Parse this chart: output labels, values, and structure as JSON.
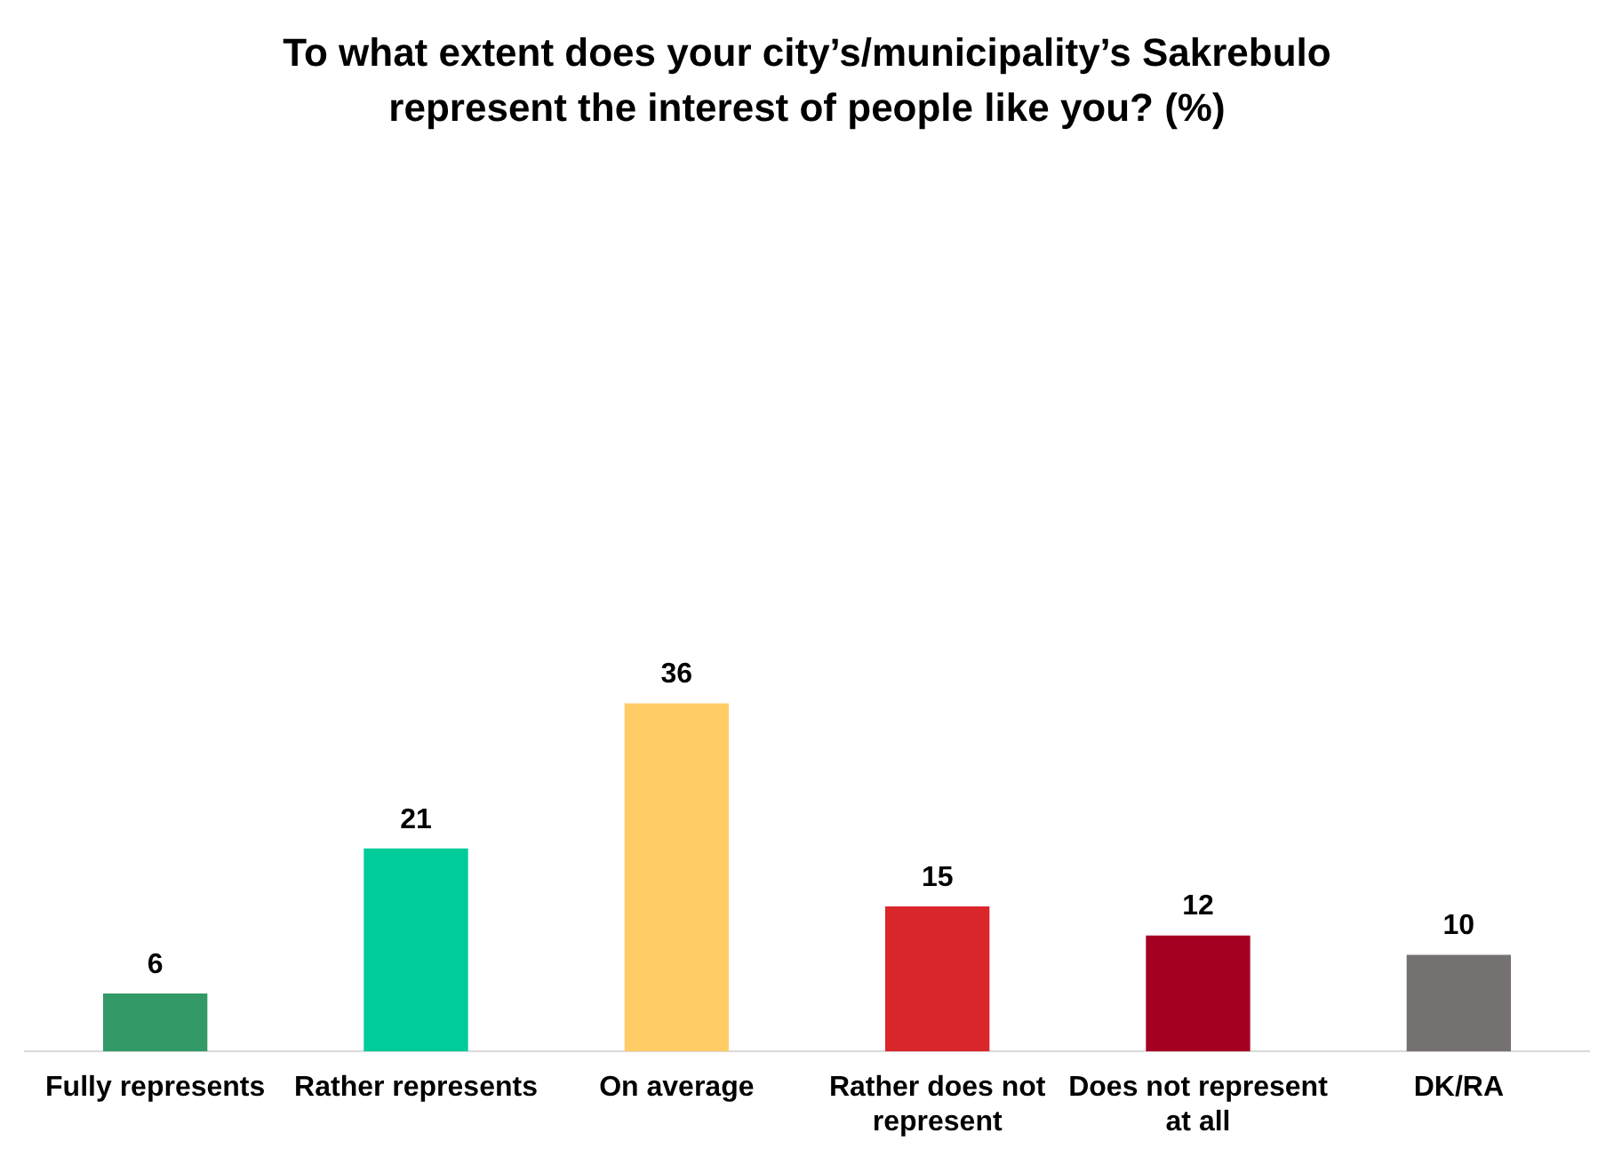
{
  "chart_data": {
    "type": "bar",
    "title": "To what extent does your city’s/municipality’s Sakrebulo represent the interest of people like you? (%)",
    "categories": [
      "Fully represents",
      "Rather represents",
      "On average",
      "Rather does not represent",
      "Does not represent at all",
      "DK/RA"
    ],
    "values": [
      6,
      21,
      36,
      15,
      12,
      10
    ],
    "colors": [
      "#339966",
      "#00cc99",
      "#ffcc66",
      "#d9262b",
      "#a50021",
      "#767171"
    ],
    "data_labels": true,
    "legend": false
  }
}
